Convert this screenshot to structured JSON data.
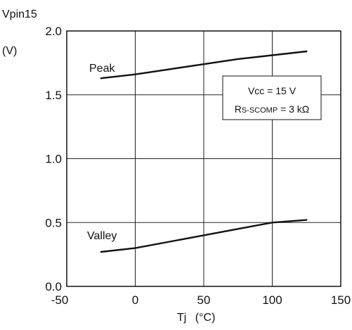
{
  "chart_data": {
    "type": "line",
    "ylabel_line1": "Vpin15",
    "ylabel_line2": "(V)",
    "xlabel_main": "Tj",
    "xlabel_unit": "(°C)",
    "xlim": [
      -50,
      150
    ],
    "ylim": [
      0.0,
      2.0
    ],
    "xticks": [
      -50,
      0,
      50,
      100,
      150
    ],
    "xtick_labels": [
      "-50",
      "0",
      "50",
      "100",
      "150"
    ],
    "yticks": [
      0.0,
      0.5,
      1.0,
      1.5,
      2.0
    ],
    "ytick_labels": [
      "0.0",
      "0.5",
      "1.0",
      "1.5",
      "2.0"
    ],
    "grid": true,
    "series": [
      {
        "name": "Peak",
        "x": [
          -25,
          0,
          25,
          50,
          75,
          100,
          125
        ],
        "y": [
          1.63,
          1.66,
          1.7,
          1.74,
          1.78,
          1.81,
          1.84
        ]
      },
      {
        "name": "Valley",
        "x": [
          -25,
          0,
          25,
          50,
          75,
          100,
          125
        ],
        "y": [
          0.27,
          0.3,
          0.35,
          0.4,
          0.45,
          0.5,
          0.52
        ]
      }
    ],
    "conditions": {
      "line1": "Vcc = 15 V",
      "line2_main": "R",
      "line2_sub": "S-SCOMP",
      "line2_rest": " = 3 kΩ"
    }
  }
}
